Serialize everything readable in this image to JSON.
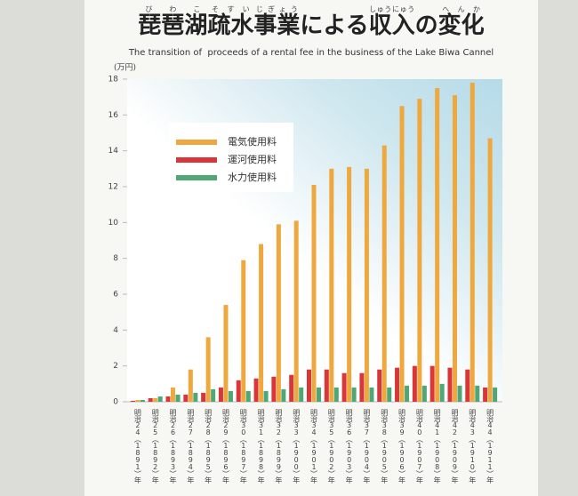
{
  "chart_data": {
    "type": "bar",
    "title_parts": [
      {
        "text": "琵琶湖",
        "ruby": "びわこ"
      },
      {
        "text": "疏水",
        "ruby": "そすい"
      },
      {
        "text": "事業",
        "ruby": "じぎょう"
      },
      {
        "text": "による"
      },
      {
        "text": "収入",
        "ruby": "しゅうにゅう"
      },
      {
        "text": "の"
      },
      {
        "text": "変化",
        "ruby": "へんか"
      }
    ],
    "subtitle": "The transition of  proceeds of a rental fee in the business of the Lake Biwa Cannel",
    "y_label": "(万円)",
    "categories": [
      "明治24（1891）年",
      "明治25（1892）年",
      "明治26（1893）年",
      "明治27（1894）年",
      "明治28（1895）年",
      "明治29（1896）年",
      "明治30（1897）年",
      "明治31（1898）年",
      "明治32（1899）年",
      "明治33（1900）年",
      "明治34（1901）年",
      "明治35（1902）年",
      "明治36（1903）年",
      "明治37（1904）年",
      "明治38（1905）年",
      "明治39（1906）年",
      "明治40（1907）年",
      "明治41（1908）年",
      "明治42（1909）年",
      "明治43（1910）年",
      "明治44（1911）年"
    ],
    "series": [
      {
        "name": "電気使用料",
        "color": "#eea83e",
        "values": [
          0.1,
          0.2,
          0.8,
          1.8,
          3.6,
          5.4,
          7.9,
          8.8,
          9.9,
          10.1,
          12.1,
          13.0,
          13.1,
          13.0,
          14.3,
          16.5,
          16.9,
          17.5,
          17.1,
          17.8,
          14.7
        ]
      },
      {
        "name": "運河使用料",
        "color": "#d9363a",
        "values": [
          0.05,
          0.2,
          0.3,
          0.4,
          0.5,
          0.8,
          1.2,
          1.3,
          1.4,
          1.5,
          1.8,
          1.8,
          1.6,
          1.6,
          1.8,
          1.9,
          2.0,
          2.0,
          1.9,
          1.8,
          0.8
        ]
      },
      {
        "name": "水力使用料",
        "color": "#4fa776",
        "values": [
          0.1,
          0.3,
          0.4,
          0.5,
          0.7,
          0.6,
          0.6,
          0.6,
          0.7,
          0.8,
          0.8,
          0.8,
          0.8,
          0.8,
          0.8,
          0.9,
          0.9,
          1.0,
          0.9,
          0.9,
          0.8
        ]
      }
    ],
    "ylim": [
      0,
      18
    ],
    "yticks": [
      0,
      2,
      4,
      6,
      8,
      10,
      12,
      14,
      16,
      18
    ],
    "grid": false
  }
}
